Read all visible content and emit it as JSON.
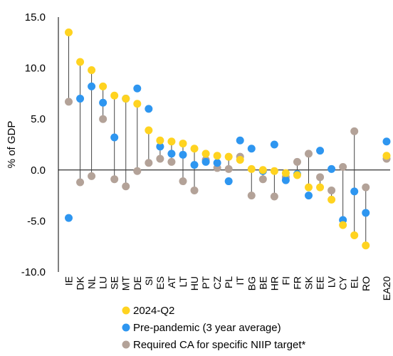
{
  "chart_data": {
    "type": "scatter",
    "ylabel": "% of GDP",
    "ylim": [
      -10,
      15
    ],
    "yticks": [
      "15.0",
      "10.0",
      "5.0",
      "0.0",
      "-5.0",
      "-10.0"
    ],
    "ytick_values": [
      15,
      10,
      5,
      0,
      -5,
      -10
    ],
    "categories": [
      "IE",
      "DK",
      "NL",
      "LU",
      "SE",
      "MT",
      "DE",
      "SI",
      "ES",
      "AT",
      "LT",
      "HU",
      "PT",
      "CZ",
      "PL",
      "IT",
      "BG",
      "BE",
      "HR",
      "FI",
      "FR",
      "SK",
      "EE",
      "LV",
      "CY",
      "EL",
      "RO",
      "EA20"
    ],
    "series": [
      {
        "name": "2024-Q2",
        "color": "#FFD320",
        "values": [
          13.5,
          10.6,
          9.8,
          8.2,
          7.3,
          7.0,
          6.5,
          3.9,
          2.9,
          2.8,
          2.6,
          2.1,
          1.6,
          1.4,
          1.3,
          1.0,
          0.1,
          0.0,
          -0.1,
          -0.3,
          -0.5,
          -1.7,
          -1.7,
          -2.9,
          -5.4,
          -6.4,
          -7.4,
          1.4
        ]
      },
      {
        "name": "Pre-pandemic (3 year average)",
        "color": "#2E96F0",
        "values": [
          -4.7,
          7.0,
          8.2,
          6.6,
          3.2,
          7.0,
          8.0,
          6.0,
          2.3,
          1.6,
          1.5,
          0.5,
          0.8,
          0.7,
          -1.1,
          2.9,
          2.1,
          -0.1,
          2.5,
          -1.0,
          -0.4,
          -2.5,
          1.9,
          0.1,
          -4.9,
          -2.1,
          -4.2,
          2.8
        ]
      },
      {
        "name": "Required CA for specific NIIP target*",
        "color": "#B3A298",
        "values": [
          6.7,
          -1.2,
          -0.6,
          5.0,
          -0.9,
          -1.6,
          -0.1,
          0.7,
          1.1,
          0.8,
          -1.1,
          -2.0,
          1.0,
          0.2,
          0.1,
          1.3,
          -2.5,
          -0.9,
          -2.6,
          -0.7,
          0.8,
          1.6,
          -0.7,
          -2.0,
          0.3,
          3.8,
          -1.7,
          1.1
        ]
      }
    ],
    "range_lines": "between 2024-Q2 and Required CA, except EA20",
    "legend_position": "bottom",
    "grid": false
  }
}
